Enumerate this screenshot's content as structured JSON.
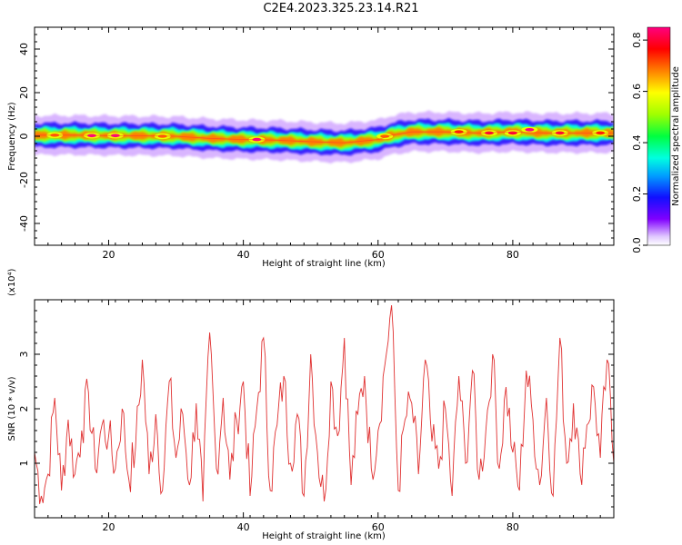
{
  "chart_data": [
    {
      "type": "heatmap",
      "title": "C2E4.2023.325.23.14.R21",
      "xlabel": "Height of straight line (km)",
      "ylabel": "Frequency (Hz)",
      "xlim": [
        9,
        95
      ],
      "ylim": [
        -50,
        50
      ],
      "x_ticks": [
        20,
        40,
        60,
        80
      ],
      "y_ticks": [
        -40,
        -20,
        0,
        20,
        40
      ],
      "x_tick_labels": [
        "20",
        "40",
        "60",
        "80"
      ],
      "y_tick_labels": [
        "-40",
        "-20",
        "0",
        "20",
        "40"
      ],
      "colorbar": {
        "label": "Normalized spectral amplitude",
        "range": [
          0,
          0.85
        ],
        "ticks": [
          0.0,
          0.2,
          0.4,
          0.6,
          0.8
        ],
        "tick_labels": [
          "0.0",
          "0.2",
          "0.4",
          "0.6",
          "0.8"
        ]
      },
      "ridge": {
        "x": [
          9,
          15,
          20,
          25,
          30,
          35,
          40,
          45,
          50,
          55,
          60,
          62,
          65,
          70,
          75,
          80,
          85,
          90,
          95
        ],
        "y": [
          0.5,
          0.5,
          0.3,
          0.2,
          0.0,
          -1.0,
          -1.5,
          -1.8,
          -2.5,
          -3.0,
          -1.5,
          0.5,
          2.0,
          2.0,
          1.5,
          2.0,
          1.5,
          1.5,
          1.5
        ]
      },
      "peaks": [
        {
          "x": 17.5,
          "y": 0.3,
          "amp": 0.85
        },
        {
          "x": 21.0,
          "y": 0.3,
          "amp": 0.85
        },
        {
          "x": 12.0,
          "y": 0.5,
          "amp": 0.7
        },
        {
          "x": 28.0,
          "y": 0.0,
          "amp": 0.7
        },
        {
          "x": 42.0,
          "y": -1.5,
          "amp": 0.85
        },
        {
          "x": 61.0,
          "y": 0.0,
          "amp": 0.7
        },
        {
          "x": 72.0,
          "y": 2.0,
          "amp": 0.75
        },
        {
          "x": 76.5,
          "y": 1.5,
          "amp": 0.8
        },
        {
          "x": 80.0,
          "y": 1.5,
          "amp": 0.8
        },
        {
          "x": 82.5,
          "y": 3.0,
          "amp": 0.85
        },
        {
          "x": 87.0,
          "y": 1.5,
          "amp": 0.8
        },
        {
          "x": 93.0,
          "y": 1.5,
          "amp": 0.75
        }
      ]
    },
    {
      "type": "line",
      "xlabel": "Height of straight line (km)",
      "ylabel": "SNR (10 * v/v)",
      "y_multiplier": "(x10⁴)",
      "xlim": [
        9,
        95
      ],
      "ylim": [
        0,
        4
      ],
      "x_ticks": [
        20,
        40,
        60,
        80
      ],
      "y_ticks": [
        1,
        2,
        3
      ],
      "x_tick_labels": [
        "20",
        "40",
        "60",
        "80"
      ],
      "y_tick_labels": [
        "1",
        "2",
        "3"
      ],
      "color": "#e03030",
      "series": [
        {
          "x": [
            9,
            10,
            11,
            12,
            13,
            14,
            15,
            16,
            17,
            18,
            19,
            20,
            21,
            22,
            23,
            24,
            25,
            26,
            27,
            28,
            29,
            30,
            31,
            32,
            33,
            34,
            35,
            36,
            37,
            38,
            39,
            40,
            41,
            42,
            43,
            44,
            45,
            46,
            47,
            48,
            49,
            50,
            51,
            52,
            53,
            54,
            55,
            56,
            57,
            58,
            59,
            60,
            61,
            62,
            63,
            64,
            65,
            66,
            67,
            68,
            69,
            70,
            71,
            72,
            73,
            74,
            75,
            76,
            77,
            78,
            79,
            80,
            81,
            82,
            83,
            84,
            85,
            86,
            87,
            88,
            89,
            90,
            91,
            92,
            93,
            94,
            95
          ],
          "y": [
            1.2,
            0.4,
            0.8,
            2.2,
            0.5,
            1.8,
            0.8,
            1.6,
            2.3,
            0.9,
            1.7,
            1.5,
            0.9,
            2.0,
            0.7,
            1.3,
            2.9,
            0.8,
            1.9,
            0.5,
            2.5,
            1.1,
            1.9,
            0.6,
            2.1,
            0.3,
            3.4,
            0.9,
            2.2,
            0.7,
            1.8,
            2.5,
            0.4,
            2.0,
            3.3,
            0.5,
            1.7,
            2.6,
            1.0,
            1.9,
            0.4,
            3.0,
            1.2,
            0.3,
            2.5,
            1.5,
            3.3,
            0.6,
            1.9,
            2.6,
            0.9,
            1.6,
            2.8,
            3.9,
            0.5,
            1.8,
            2.1,
            0.8,
            2.9,
            1.4,
            0.9,
            2.0,
            0.4,
            2.6,
            1.0,
            2.7,
            0.7,
            1.6,
            3.0,
            0.9,
            2.4,
            1.2,
            0.5,
            2.7,
            1.8,
            0.6,
            2.2,
            0.4,
            3.3,
            1.0,
            2.1,
            0.8,
            1.7,
            2.4,
            1.1,
            2.9,
            1.0
          ]
        }
      ]
    }
  ]
}
